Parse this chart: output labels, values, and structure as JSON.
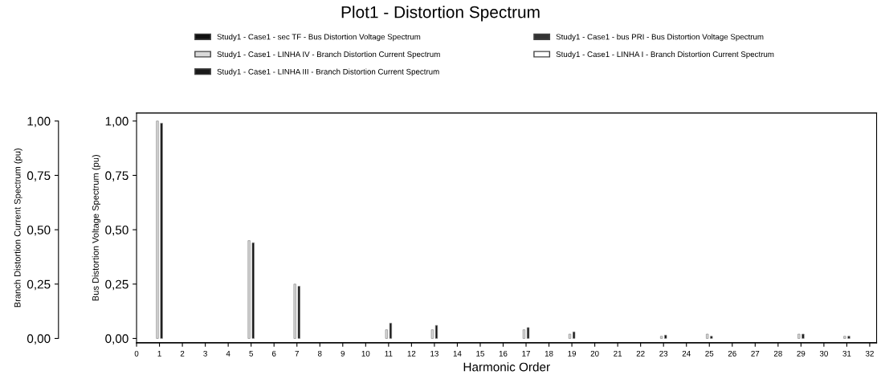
{
  "chart_data": {
    "type": "bar",
    "title": "Plot1 - Distortion Spectrum",
    "xlabel": "Harmonic Order",
    "ylabel": "Branch Distortion Current Spectrum (pu)",
    "y2label": "Bus Distortion Voltage Spectrum (pu)",
    "x": [
      1,
      5,
      7,
      11,
      13,
      17,
      19,
      23,
      25,
      29,
      31
    ],
    "series": [
      {
        "name": "Study1 - Case1 - sec TF - Bus Distortion Voltage Spectrum",
        "color": "#111111",
        "axis": "y2",
        "values": [
          0.99,
          0.44,
          0.24,
          0.07,
          0.06,
          0.05,
          0.03,
          0.015,
          0.01,
          0.02,
          0.01
        ]
      },
      {
        "name": "Study1 - Case1 - bus PRI - Bus Distortion Voltage Spectrum",
        "color": "#333333",
        "axis": "y2",
        "values": [
          null,
          null,
          null,
          null,
          null,
          null,
          null,
          null,
          null,
          null,
          null
        ]
      },
      {
        "name": "Study1 - Case1 - LINHA IV - Branch Distortion Current Spectrum",
        "color": "#d9d9d9",
        "values": [
          1.0,
          0.45,
          0.25,
          0.04,
          0.04,
          0.04,
          0.02,
          0.01,
          0.02,
          0.02,
          0.01
        ]
      },
      {
        "name": "Study1 - Case1 - LINHA I - Branch Distortion Current Spectrum",
        "color": "#ffffff",
        "values": [
          null,
          null,
          null,
          null,
          null,
          null,
          null,
          null,
          null,
          null,
          null
        ]
      },
      {
        "name": "Study1 - Case1 - LINHA III - Branch Distortion Current Spectrum",
        "color": "#1a1a1a",
        "values": [
          null,
          null,
          null,
          null,
          null,
          null,
          null,
          null,
          null,
          null,
          null
        ]
      }
    ],
    "xlim": [
      0,
      32.3
    ],
    "xticks": [
      0,
      1,
      2,
      3,
      4,
      5,
      6,
      7,
      8,
      9,
      10,
      11,
      12,
      13,
      14,
      15,
      16,
      17,
      18,
      19,
      20,
      21,
      22,
      23,
      24,
      25,
      26,
      27,
      28,
      29,
      30,
      31,
      32
    ],
    "ylim": [
      -0.02,
      1.037
    ],
    "yticks": [
      {
        "value": 0,
        "label": "0,00"
      },
      {
        "value": 0.25,
        "label": "0,25"
      },
      {
        "value": 0.5,
        "label": "0,50"
      },
      {
        "value": 0.75,
        "label": "0,75"
      },
      {
        "value": 1,
        "label": "1,00"
      }
    ],
    "y2lim": [
      -0.02,
      1.037
    ],
    "y2ticks": [
      {
        "value": 0,
        "label": "0,00"
      },
      {
        "value": 0.25,
        "label": "0,25"
      },
      {
        "value": 0.5,
        "label": "0,50"
      },
      {
        "value": 0.75,
        "label": "0,75"
      },
      {
        "value": 1,
        "label": "1,00"
      }
    ],
    "legend": "top"
  }
}
